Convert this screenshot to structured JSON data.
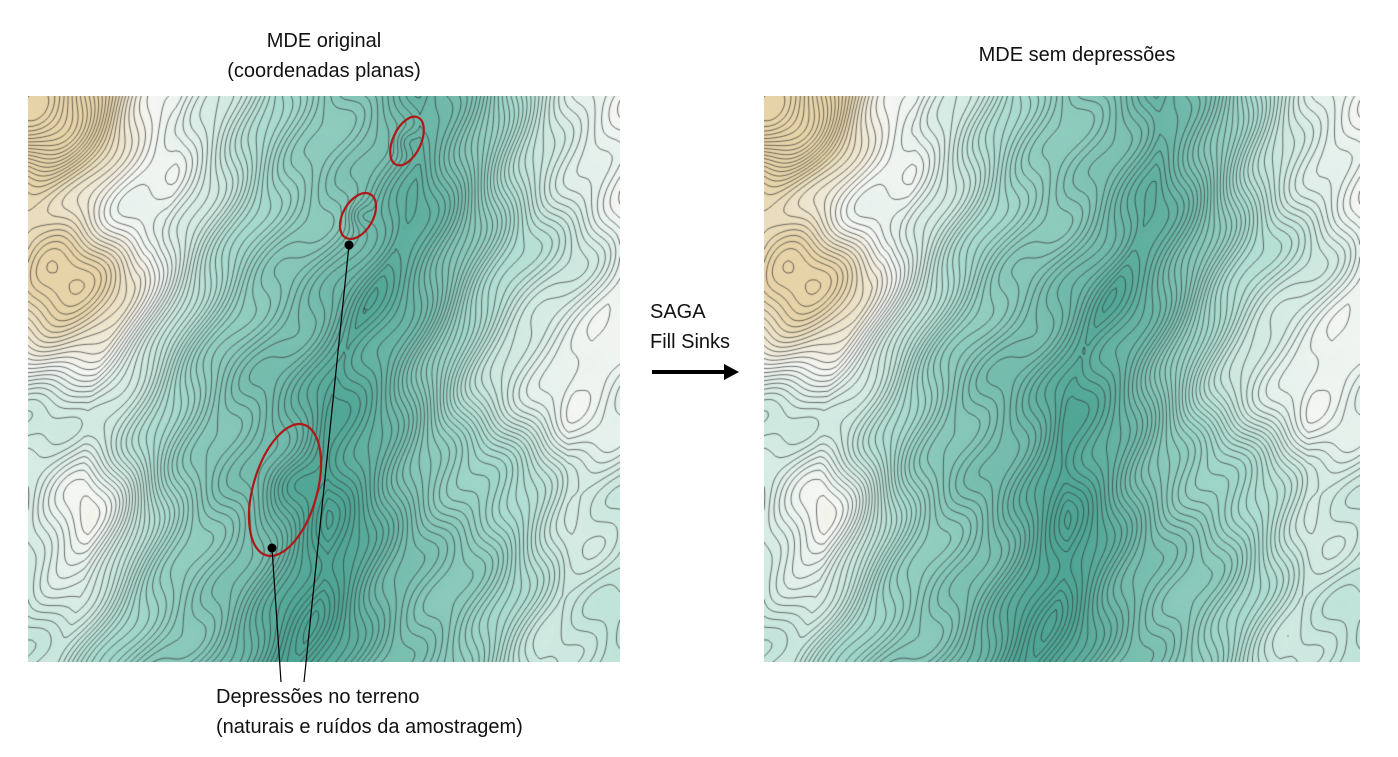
{
  "left_panel": {
    "title_line1": "MDE original",
    "title_line2": "(coordenadas planas)"
  },
  "right_panel": {
    "title": "MDE sem depressões"
  },
  "process": {
    "line1": "SAGA",
    "line2": "Fill Sinks"
  },
  "annotation": {
    "line1": "Depressões no terreno",
    "line2": "(naturais e ruídos da amostragem)",
    "ellipse_color": "#b01818"
  },
  "colors": {
    "low": "#4fa595",
    "mid": "#a6dacd",
    "high": "#f4f6f3",
    "peak": "#e6d3a8",
    "contour": "#333333"
  }
}
